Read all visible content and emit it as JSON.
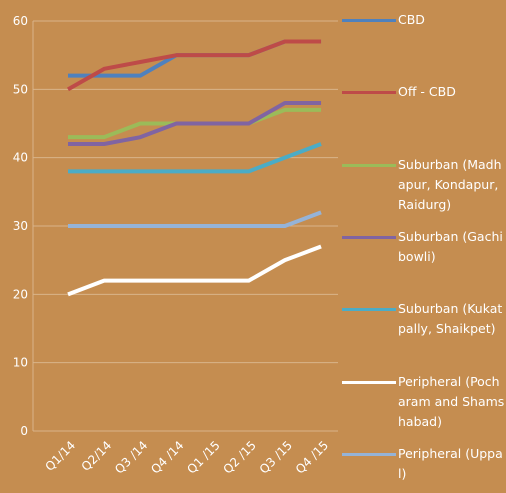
{
  "chart_data": {
    "type": "line",
    "categories": [
      "Q1/14",
      "Q2/14",
      "Q3 /14",
      "Q4 /14",
      "Q1 /15",
      "Q2 /15",
      "Q3 /15",
      "Q4 /15"
    ],
    "series": [
      {
        "name": "CBD",
        "color": "#4f81bd",
        "values": [
          52,
          52,
          52,
          55,
          55,
          55,
          57,
          57
        ]
      },
      {
        "name": "Off - CBD",
        "color": "#be4b48",
        "values": [
          50,
          53,
          54,
          55,
          55,
          55,
          57,
          57
        ]
      },
      {
        "name": "Suburban (Madhapur, Kondapur,Raidurg)",
        "color": "#9bbb59",
        "values": [
          43,
          43,
          45,
          45,
          45,
          45,
          47,
          47
        ]
      },
      {
        "name": "Suburban (Gachibowli)",
        "color": "#8064a2",
        "values": [
          42,
          42,
          43,
          45,
          45,
          45,
          48,
          48
        ]
      },
      {
        "name": "Suburban (Kukatpally, Shaikpet)",
        "color": "#4bacc6",
        "values": [
          38,
          38,
          38,
          38,
          38,
          38,
          40,
          42
        ]
      },
      {
        "name": "Peripheral (Pocharam and Shamshabad)",
        "color": "#ffffff",
        "values": [
          20,
          22,
          22,
          22,
          22,
          22,
          25,
          27
        ]
      },
      {
        "name": "Peripheral (Uppal)",
        "color": "#95b3d7",
        "values": [
          30,
          30,
          30,
          30,
          30,
          30,
          30,
          32
        ]
      }
    ],
    "ylim": [
      0,
      60
    ],
    "yticks": [
      0,
      10,
      20,
      30,
      40,
      50,
      60
    ],
    "grid": true,
    "legend": "right"
  }
}
